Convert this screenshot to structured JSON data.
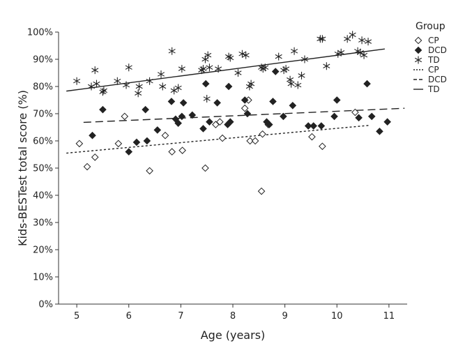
{
  "chart_data": {
    "type": "scatter",
    "title": "",
    "xlabel": "Age (years)",
    "ylabel": "Kids-BESTest total score (%)",
    "xlim": [
      4.65,
      11.35
    ],
    "ylim": [
      0,
      100
    ],
    "x_ticks": [
      5,
      6,
      7,
      8,
      9,
      10,
      11
    ],
    "y_ticks": [
      0,
      10,
      20,
      30,
      40,
      50,
      60,
      70,
      80,
      90,
      100
    ],
    "y_tick_suffix": "%",
    "grid": false,
    "legend": {
      "title": "Group",
      "position": "right",
      "marker_entries": [
        "CP",
        "DCD",
        "TD"
      ],
      "line_entries": [
        "CP",
        "DCD",
        "TD"
      ]
    },
    "series": [
      {
        "name": "CP",
        "marker": "diamond-open",
        "color": "#222222",
        "x": [
          5.05,
          5.2,
          5.35,
          5.8,
          5.92,
          6.4,
          6.7,
          6.83,
          7.03,
          7.47,
          7.67,
          7.75,
          7.8,
          8.23,
          8.3,
          8.33,
          8.43,
          8.55,
          8.57,
          8.68,
          9.52,
          9.72,
          10.35
        ],
        "y": [
          59,
          50.5,
          54,
          59,
          69,
          49,
          62,
          56,
          56.5,
          50,
          66,
          67,
          61,
          72,
          75,
          60,
          60,
          41.5,
          62.5,
          66,
          61.5,
          58,
          70.5
        ]
      },
      {
        "name": "DCD",
        "marker": "diamond-filled",
        "color": "#222222",
        "x": [
          5.3,
          5.5,
          6.0,
          6.15,
          6.32,
          6.35,
          6.55,
          6.82,
          6.9,
          6.95,
          7.02,
          7.05,
          7.22,
          7.43,
          7.48,
          7.55,
          7.7,
          7.9,
          7.92,
          7.95,
          8.23,
          8.28,
          8.65,
          8.7,
          8.77,
          8.82,
          8.97,
          9.15,
          9.45,
          9.55,
          9.7,
          9.95,
          10.0,
          10.42,
          10.58,
          10.67,
          10.82,
          10.97
        ],
        "y": [
          62,
          71.5,
          56,
          59.5,
          71.5,
          60,
          64,
          74.5,
          68,
          66.5,
          69,
          74,
          69.5,
          64.5,
          81,
          67,
          74,
          66,
          80,
          67,
          75,
          70,
          67,
          66,
          74.5,
          85.5,
          69,
          73,
          65.5,
          65.5,
          65.5,
          69,
          75,
          68.5,
          81,
          69,
          63.5,
          67
        ]
      },
      {
        "name": "TD",
        "marker": "asterisk",
        "color": "#222222",
        "x": [
          5.0,
          5.28,
          5.35,
          5.38,
          5.5,
          5.52,
          5.78,
          5.95,
          6.0,
          6.18,
          6.2,
          6.4,
          6.62,
          6.65,
          6.83,
          6.87,
          6.95,
          7.02,
          7.4,
          7.43,
          7.47,
          7.5,
          7.52,
          7.55,
          7.72,
          7.92,
          7.95,
          8.1,
          8.18,
          8.25,
          8.32,
          8.35,
          8.55,
          8.58,
          8.62,
          8.88,
          8.98,
          9.02,
          9.1,
          9.12,
          9.18,
          9.25,
          9.32,
          9.38,
          9.68,
          9.72,
          9.8,
          10.02,
          10.08,
          10.2,
          10.3,
          10.4,
          10.45,
          10.48,
          10.52,
          10.6
        ],
        "y": [
          82,
          80,
          86,
          81,
          78,
          78.5,
          82,
          80.5,
          87,
          77.5,
          80,
          82,
          84.5,
          80,
          93,
          78.5,
          79.5,
          86.5,
          86,
          86.5,
          90,
          75.5,
          91.5,
          87,
          86.5,
          91,
          90.5,
          85,
          92,
          91.5,
          80,
          81,
          87,
          86.5,
          87,
          91,
          86,
          86.5,
          82.5,
          81,
          93,
          80.5,
          84,
          90,
          97.5,
          97.5,
          87.5,
          92,
          92.5,
          97.5,
          99,
          93,
          92.5,
          97,
          91.5,
          96.5
        ]
      }
    ],
    "fit_lines": [
      {
        "name": "CP",
        "style": "dotted",
        "x": [
          4.8,
          10.62
        ],
        "y": [
          55.5,
          65.7
        ]
      },
      {
        "name": "DCD",
        "style": "dashed",
        "x": [
          5.13,
          11.3
        ],
        "y": [
          66.8,
          72.0
        ]
      },
      {
        "name": "TD",
        "style": "solid",
        "x": [
          4.8,
          10.92
        ],
        "y": [
          78.3,
          93.8
        ]
      }
    ]
  }
}
